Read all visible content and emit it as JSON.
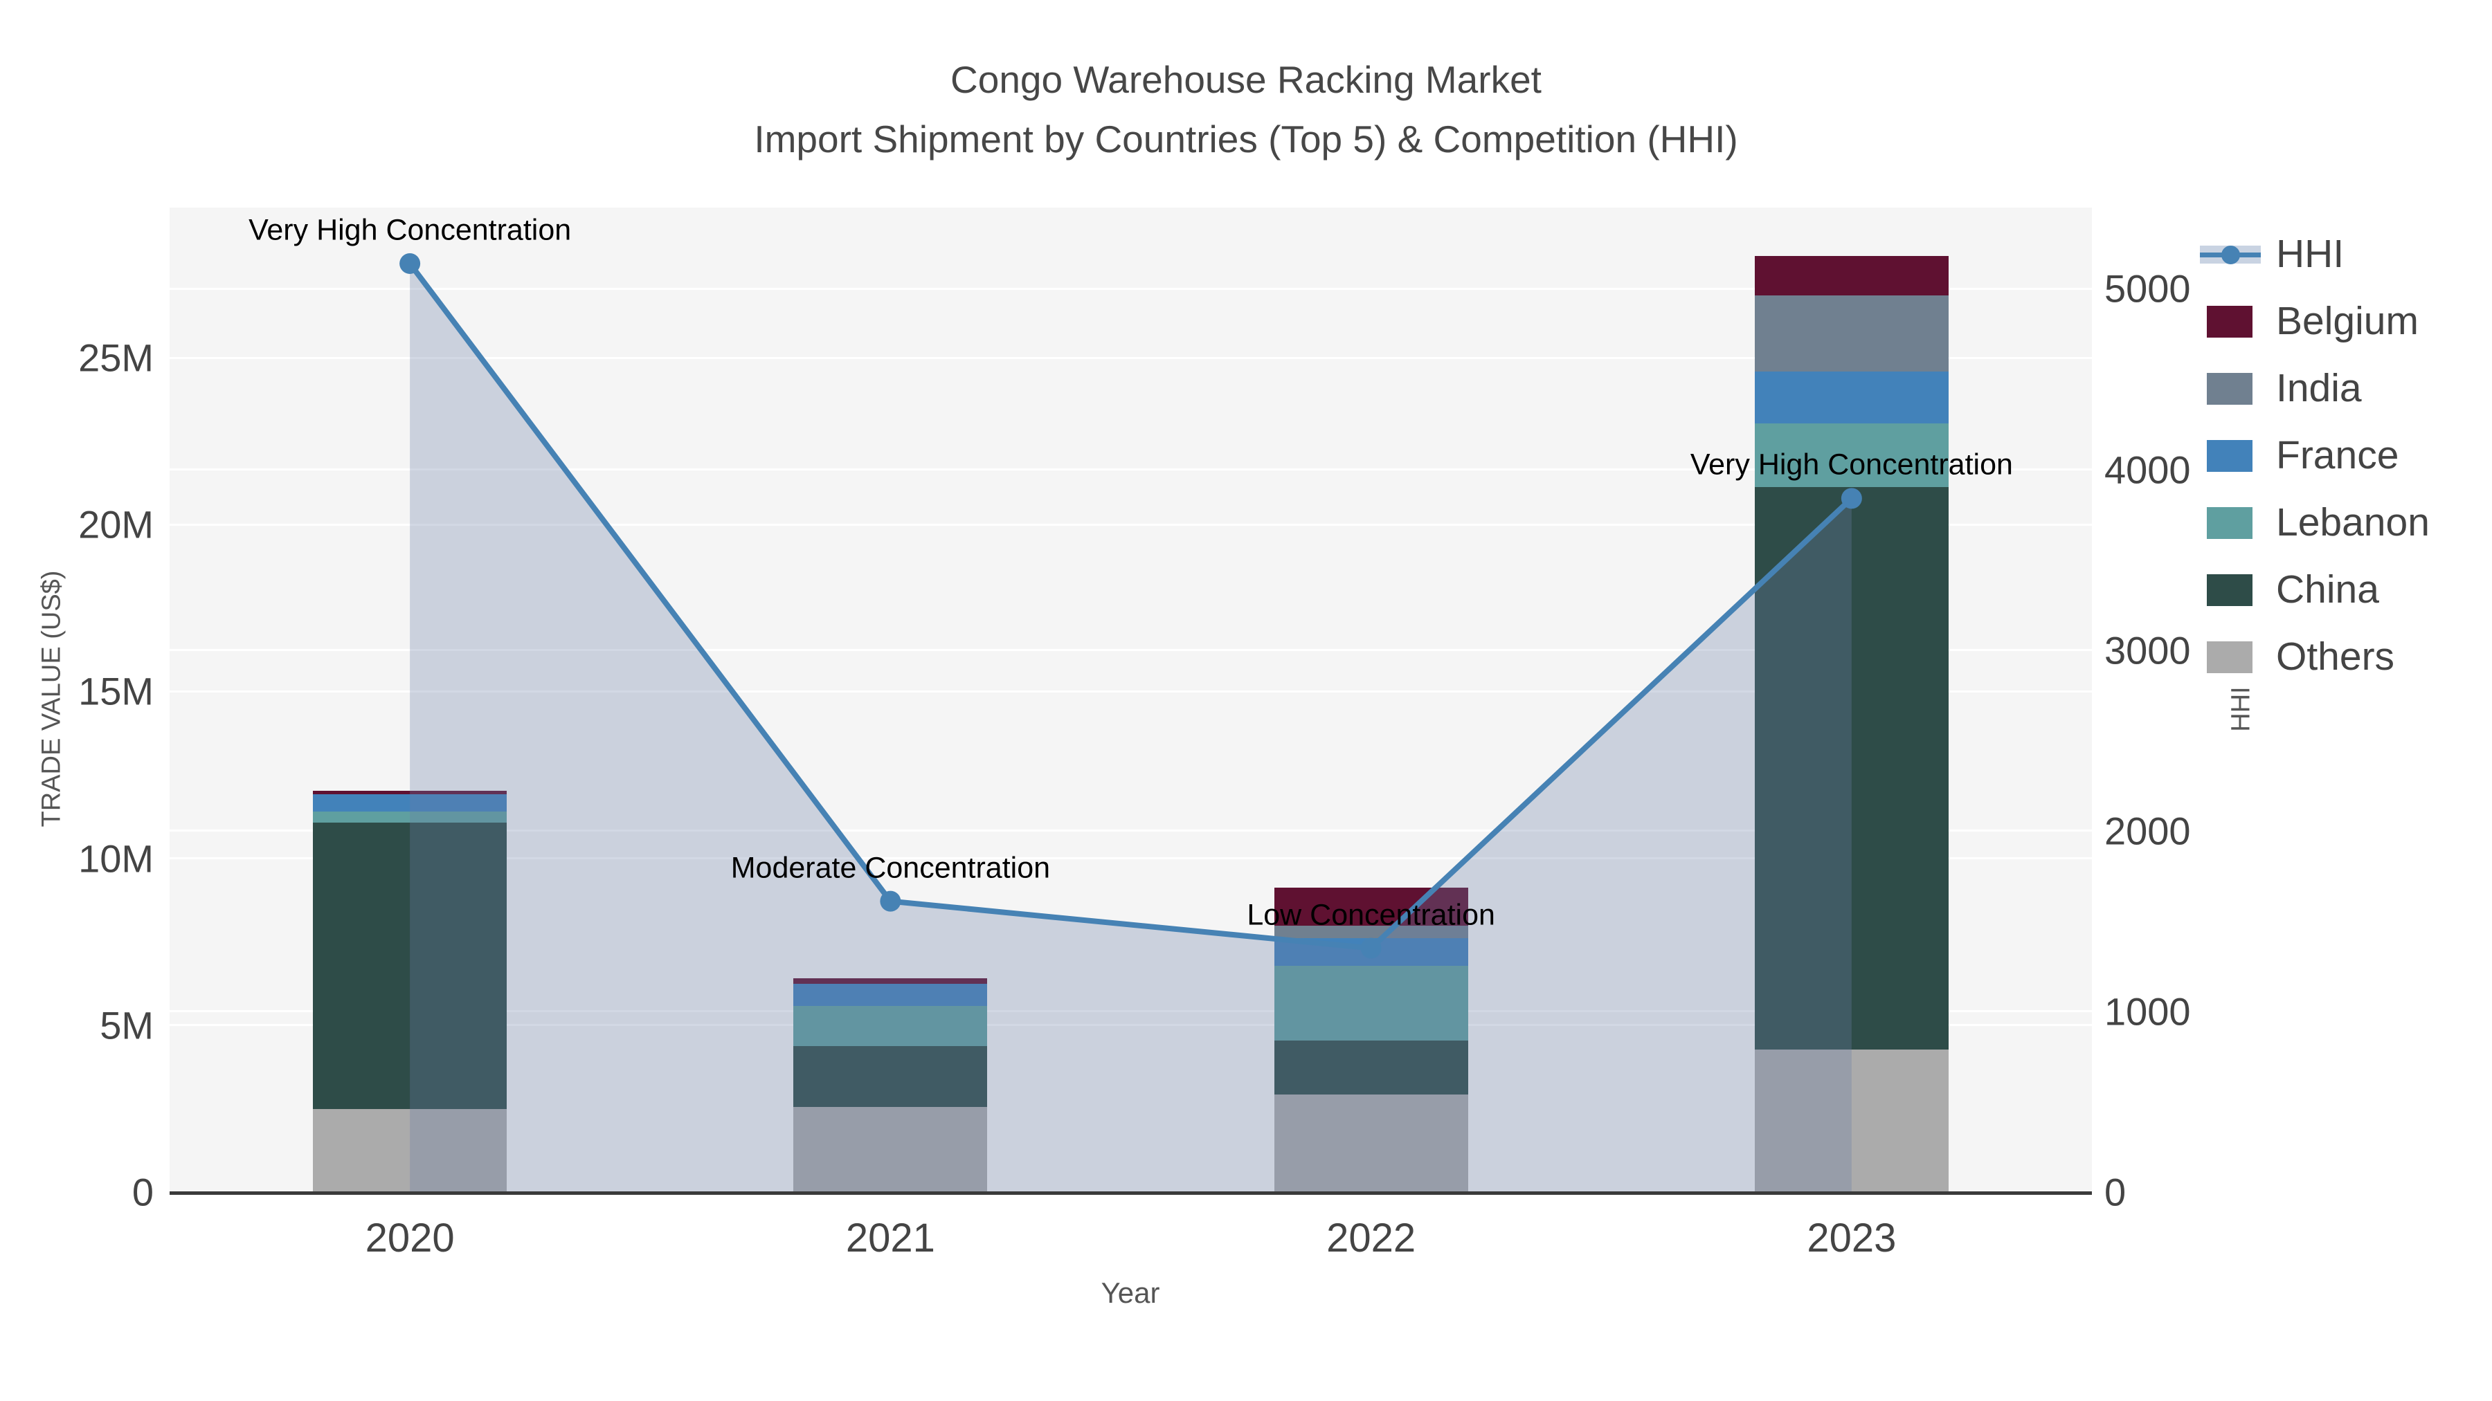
{
  "title": {
    "line1": "Congo Warehouse Racking Market",
    "line2": "Import Shipment by Countries (Top 5) & Competition (HHI)"
  },
  "chart_data": {
    "type": "bar+line",
    "categories": [
      "2020",
      "2021",
      "2022",
      "2023"
    ],
    "bar_value_unit": "million US$",
    "series": [
      {
        "name": "Others",
        "color": "#ababab",
        "values": [
          2.49,
          2.55,
          2.93,
          4.27
        ]
      },
      {
        "name": "China",
        "color": "#2e4c48",
        "values": [
          8.57,
          1.83,
          1.6,
          16.85
        ]
      },
      {
        "name": "Lebanon",
        "color": "#5f9fa0",
        "values": [
          0.35,
          1.2,
          2.24,
          1.91
        ]
      },
      {
        "name": "France",
        "color": "#4282ba",
        "values": [
          0.52,
          0.66,
          0.83,
          1.56
        ]
      },
      {
        "name": "India",
        "color": "#708090",
        "values": [
          0.0,
          0.0,
          0.39,
          2.28
        ]
      },
      {
        "name": "Belgium",
        "color": "#5f1131",
        "values": [
          0.1,
          0.17,
          1.14,
          1.18
        ]
      }
    ],
    "bar_totals": [
      12.03,
      6.41,
      9.13,
      28.05
    ],
    "line_series": {
      "name": "HHI",
      "color": "#4682b4",
      "area_fill": "rgba(105,126,166,0.30)",
      "values": [
        5140,
        1610,
        1350,
        3840
      ]
    },
    "annotations": [
      {
        "category": "2020",
        "text": "Very High Concentration"
      },
      {
        "category": "2021",
        "text": "Moderate Concentration"
      },
      {
        "category": "2022",
        "text": "Low Concentration"
      },
      {
        "category": "2023",
        "text": "Very High Concentration"
      }
    ],
    "x_axis": {
      "title": "Year",
      "tick_labels": [
        "2020",
        "2021",
        "2022",
        "2023"
      ]
    },
    "y_axis_left": {
      "title": "TRADE VALUE (US$)",
      "tick_labels": [
        "0",
        "5M",
        "10M",
        "15M",
        "20M",
        "25M"
      ],
      "tick_values": [
        0,
        5,
        10,
        15,
        20,
        25
      ],
      "max": 29.5
    },
    "y_axis_right": {
      "title": "HHI",
      "tick_labels": [
        "0",
        "1000",
        "2000",
        "3000",
        "4000",
        "5000"
      ],
      "tick_values": [
        0,
        1000,
        2000,
        3000,
        4000,
        5000
      ],
      "max": 5450
    },
    "legend": [
      {
        "label": "HHI",
        "symbol": "line",
        "color": "#4682b4"
      },
      {
        "label": "Belgium",
        "symbol": "swatch",
        "color": "#5f1131"
      },
      {
        "label": "India",
        "symbol": "swatch",
        "color": "#708090"
      },
      {
        "label": "France",
        "symbol": "swatch",
        "color": "#4282ba"
      },
      {
        "label": "Lebanon",
        "symbol": "swatch",
        "color": "#5f9fa0"
      },
      {
        "label": "China",
        "symbol": "swatch",
        "color": "#2e4c48"
      },
      {
        "label": "Others",
        "symbol": "swatch",
        "color": "#ababab"
      }
    ],
    "plot_bg": "#f5f5f5",
    "grid_color": "#ffffff",
    "axis_line_color": "#3a3a3a",
    "text_color": "#444444",
    "annotation_color": "#000000"
  }
}
